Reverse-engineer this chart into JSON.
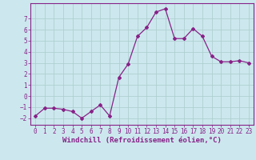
{
  "x": [
    0,
    1,
    2,
    3,
    4,
    5,
    6,
    7,
    8,
    9,
    10,
    11,
    12,
    13,
    14,
    15,
    16,
    17,
    18,
    19,
    20,
    21,
    22,
    23
  ],
  "y": [
    -1.8,
    -1.1,
    -1.1,
    -1.2,
    -1.4,
    -2.0,
    -1.4,
    -0.8,
    -1.8,
    1.7,
    2.9,
    5.4,
    6.2,
    7.6,
    7.9,
    5.2,
    5.2,
    6.1,
    5.4,
    3.6,
    3.1,
    3.1,
    3.2,
    3.0
  ],
  "line_color": "#882288",
  "marker": "D",
  "marker_size": 2.0,
  "bg_color": "#cce8ee",
  "grid_color": "#aacccc",
  "xlabel": "Windchill (Refroidissement éolien,°C)",
  "xlim": [
    -0.5,
    23.5
  ],
  "ylim": [
    -2.6,
    8.4
  ],
  "yticks": [
    -2,
    -1,
    0,
    1,
    2,
    3,
    4,
    5,
    6,
    7
  ],
  "xticks": [
    0,
    1,
    2,
    3,
    4,
    5,
    6,
    7,
    8,
    9,
    10,
    11,
    12,
    13,
    14,
    15,
    16,
    17,
    18,
    19,
    20,
    21,
    22,
    23
  ],
  "tick_label_fontsize": 5.5,
  "xlabel_fontsize": 6.5
}
